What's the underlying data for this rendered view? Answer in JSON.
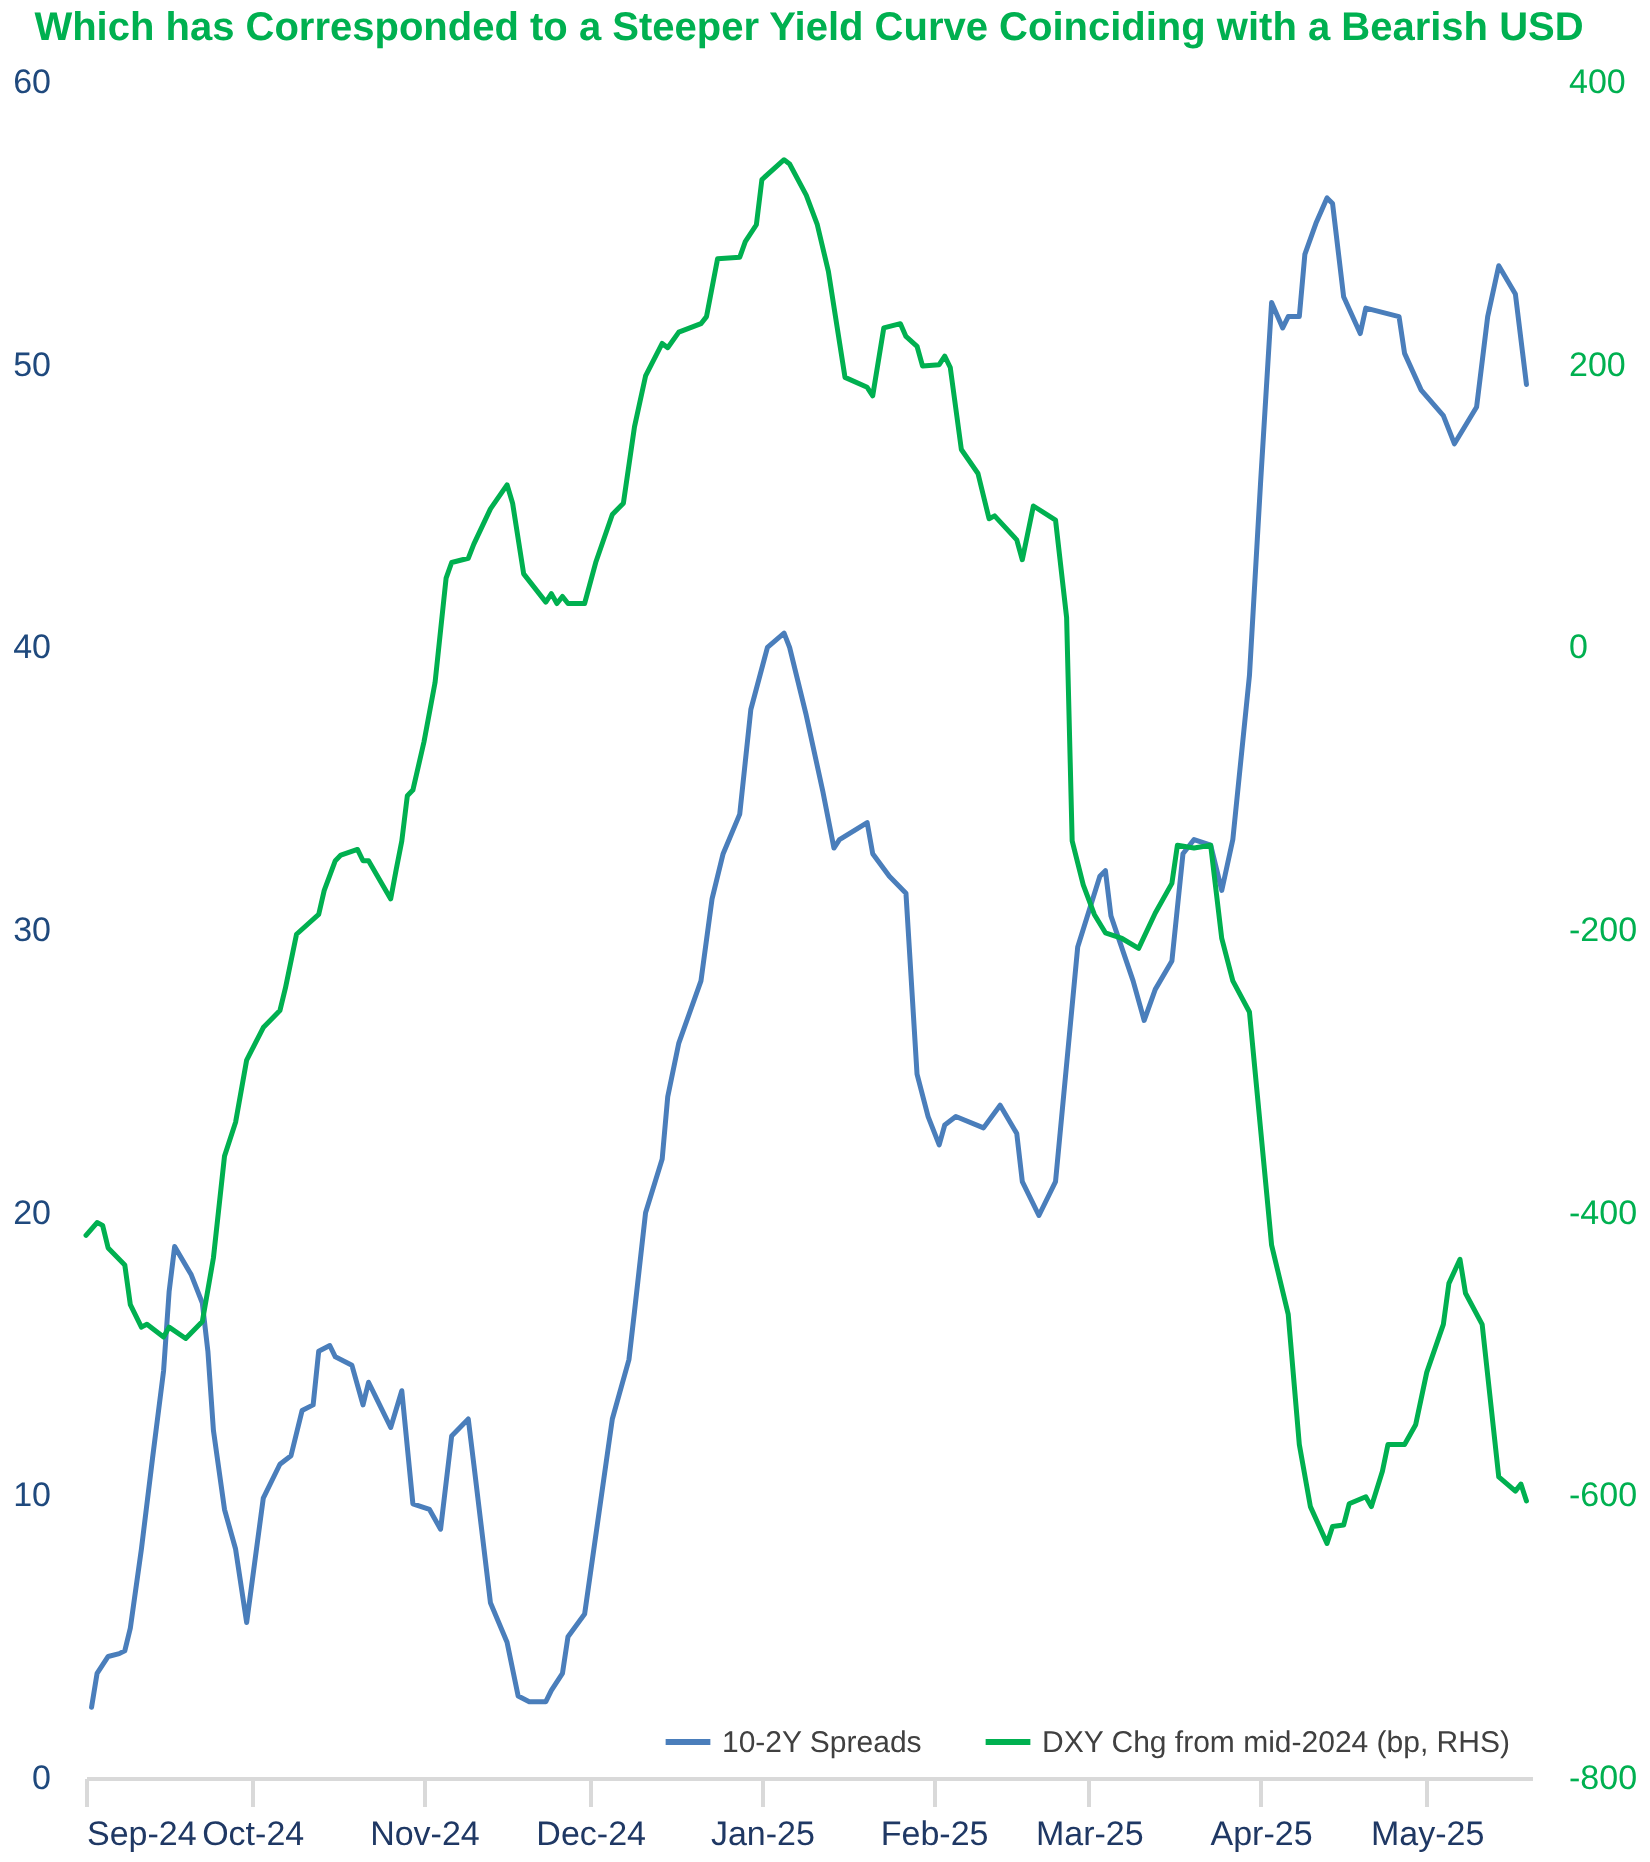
{
  "chart_data": {
    "type": "line",
    "title": "Which has Corresponded to a Steeper Yield Curve Coinciding with a Bearish USD",
    "xlim": [
      "2024-09-01",
      "2025-05-20"
    ],
    "xticks": [
      {
        "value": "2024-09-01",
        "label": "Sep-24"
      },
      {
        "value": "2024-10-01",
        "label": "Oct-24"
      },
      {
        "value": "2024-11-01",
        "label": "Nov-24"
      },
      {
        "value": "2024-12-01",
        "label": "Dec-24"
      },
      {
        "value": "2025-01-01",
        "label": "Jan-25"
      },
      {
        "value": "2025-02-01",
        "label": "Feb-25"
      },
      {
        "value": "2025-03-01",
        "label": "Mar-25"
      },
      {
        "value": "2025-04-01",
        "label": "Apr-25"
      },
      {
        "value": "2025-05-01",
        "label": "May-25"
      }
    ],
    "ylim": [
      0,
      60
    ],
    "yticks": [
      0,
      10,
      20,
      30,
      40,
      50,
      60
    ],
    "y2lim": [
      -800,
      400
    ],
    "y2ticks": [
      -800,
      -600,
      -400,
      -200,
      0,
      200,
      400
    ],
    "legend": "bottom right",
    "series": [
      {
        "name": "10-2Y Spreads",
        "color": "#4a7ebb",
        "x": [
          "2024-09-02",
          "2024-09-03",
          "2024-09-05",
          "2024-09-07",
          "2024-09-08",
          "2024-09-09",
          "2024-09-11",
          "2024-09-13",
          "2024-09-15",
          "2024-09-16",
          "2024-09-17",
          "2024-09-20",
          "2024-09-22",
          "2024-09-23",
          "2024-09-24",
          "2024-09-26",
          "2024-09-28",
          "2024-09-30",
          "2024-10-03",
          "2024-10-06",
          "2024-10-08",
          "2024-10-10",
          "2024-10-12",
          "2024-10-13",
          "2024-10-15",
          "2024-10-16",
          "2024-10-19",
          "2024-10-21",
          "2024-10-22",
          "2024-10-24",
          "2024-10-26",
          "2024-10-28",
          "2024-10-30",
          "2024-11-02",
          "2024-11-04",
          "2024-11-06",
          "2024-11-09",
          "2024-11-10",
          "2024-11-13",
          "2024-11-16",
          "2024-11-18",
          "2024-11-20",
          "2024-11-23",
          "2024-11-24",
          "2024-11-26",
          "2024-11-27",
          "2024-11-30",
          "2024-12-05",
          "2024-12-08",
          "2024-12-09",
          "2024-12-11",
          "2024-12-14",
          "2024-12-15",
          "2024-12-17",
          "2024-12-21",
          "2024-12-23",
          "2024-12-25",
          "2024-12-28",
          "2024-12-30",
          "2025-01-02",
          "2025-01-05",
          "2025-01-06",
          "2025-01-09",
          "2025-01-12",
          "2025-01-14",
          "2025-01-15",
          "2025-01-20",
          "2025-01-21",
          "2025-01-24",
          "2025-01-27",
          "2025-01-29",
          "2025-01-31",
          "2025-02-02",
          "2025-02-03",
          "2025-02-05",
          "2025-02-10",
          "2025-02-13",
          "2025-02-16",
          "2025-02-17",
          "2025-02-20",
          "2025-02-23",
          "2025-02-27",
          "2025-03-03",
          "2025-03-04",
          "2025-03-05",
          "2025-03-09",
          "2025-03-11",
          "2025-03-13",
          "2025-03-16",
          "2025-03-18",
          "2025-03-20",
          "2025-03-23",
          "2025-03-25",
          "2025-03-27",
          "2025-03-30",
          "2025-04-01",
          "2025-04-03",
          "2025-04-05",
          "2025-04-06",
          "2025-04-08",
          "2025-04-09",
          "2025-04-11",
          "2025-04-13",
          "2025-04-14",
          "2025-04-16",
          "2025-04-19",
          "2025-04-20",
          "2025-04-26",
          "2025-04-27",
          "2025-04-30",
          "2025-05-04",
          "2025-05-06",
          "2025-05-10",
          "2025-05-12",
          "2025-05-14",
          "2025-05-17",
          "2025-05-19"
        ],
        "values": [
          2.5,
          3.7,
          4.3,
          4.4,
          4.5,
          5.3,
          8.1,
          11.3,
          14.4,
          17.2,
          18.8,
          17.8,
          16.8,
          15.1,
          12.3,
          9.5,
          8.1,
          5.5,
          9.9,
          11.1,
          11.4,
          13.0,
          13.2,
          15.1,
          15.3,
          14.9,
          14.6,
          13.2,
          14.0,
          13.2,
          12.4,
          13.7,
          9.7,
          9.5,
          8.8,
          12.1,
          12.7,
          11.1,
          6.2,
          4.8,
          2.9,
          2.7,
          2.7,
          3.1,
          3.7,
          5.0,
          5.8,
          12.7,
          14.8,
          16.5,
          20.0,
          21.9,
          24.1,
          26.0,
          28.2,
          31.1,
          32.7,
          34.1,
          37.8,
          40.0,
          40.5,
          40.0,
          37.6,
          34.9,
          32.9,
          33.2,
          33.8,
          32.7,
          31.9,
          31.3,
          24.9,
          23.4,
          22.4,
          23.1,
          23.4,
          23.0,
          23.8,
          22.8,
          21.1,
          19.9,
          21.1,
          29.4,
          31.9,
          32.1,
          30.5,
          28.2,
          26.8,
          27.9,
          28.9,
          32.7,
          33.2,
          33.0,
          31.4,
          33.2,
          39.0,
          45.8,
          52.2,
          51.3,
          51.7,
          51.7,
          53.9,
          55.0,
          55.9,
          55.7,
          52.4,
          51.1,
          52.0,
          51.7,
          50.4,
          49.1,
          48.2,
          47.2,
          48.5,
          51.7,
          53.5,
          52.5,
          49.3
        ]
      },
      {
        "name": "DXY Chg from mid-2024 (bp, RHS)",
        "color": "#00b050",
        "axis": "y2",
        "x": [
          "2024-09-01",
          "2024-09-03",
          "2024-09-04",
          "2024-09-05",
          "2024-09-08",
          "2024-09-09",
          "2024-09-11",
          "2024-09-12",
          "2024-09-15",
          "2024-09-16",
          "2024-09-19",
          "2024-09-22",
          "2024-09-24",
          "2024-09-26",
          "2024-09-28",
          "2024-09-30",
          "2024-10-03",
          "2024-10-06",
          "2024-10-07",
          "2024-10-09",
          "2024-10-13",
          "2024-10-14",
          "2024-10-16",
          "2024-10-17",
          "2024-10-20",
          "2024-10-21",
          "2024-10-22",
          "2024-10-26",
          "2024-10-27",
          "2024-10-28",
          "2024-10-29",
          "2024-10-30",
          "2024-11-01",
          "2024-11-03",
          "2024-11-05",
          "2024-11-06",
          "2024-11-09",
          "2024-11-10",
          "2024-11-13",
          "2024-11-16",
          "2024-11-17",
          "2024-11-19",
          "2024-11-23",
          "2024-11-24",
          "2024-11-25",
          "2024-11-26",
          "2024-11-27",
          "2024-11-30",
          "2024-12-02",
          "2024-12-05",
          "2024-12-07",
          "2024-12-09",
          "2024-12-11",
          "2024-12-14",
          "2024-12-15",
          "2024-12-17",
          "2024-12-21",
          "2024-12-22",
          "2024-12-24",
          "2024-12-28",
          "2024-12-29",
          "2024-12-31",
          "2025-01-01",
          "2025-01-05",
          "2025-01-06",
          "2025-01-09",
          "2025-01-11",
          "2025-01-13",
          "2025-01-16",
          "2025-01-20",
          "2025-01-21",
          "2025-01-23",
          "2025-01-26",
          "2025-01-27",
          "2025-01-29",
          "2025-01-30",
          "2025-02-02",
          "2025-02-03",
          "2025-02-04",
          "2025-02-06",
          "2025-02-09",
          "2025-02-11",
          "2025-02-12",
          "2025-02-16",
          "2025-02-17",
          "2025-02-19",
          "2025-02-23",
          "2025-02-25",
          "2025-02-26",
          "2025-02-28",
          "2025-03-02",
          "2025-03-04",
          "2025-03-07",
          "2025-03-10",
          "2025-03-13",
          "2025-03-16",
          "2025-03-17",
          "2025-03-20",
          "2025-03-23",
          "2025-03-25",
          "2025-03-27",
          "2025-03-30",
          "2025-04-03",
          "2025-04-06",
          "2025-04-08",
          "2025-04-10",
          "2025-04-13",
          "2025-04-14",
          "2025-04-16",
          "2025-04-17",
          "2025-04-20",
          "2025-04-21",
          "2025-04-23",
          "2025-04-24",
          "2025-04-27",
          "2025-04-29",
          "2025-05-01",
          "2025-05-04",
          "2025-05-05",
          "2025-05-07",
          "2025-05-08",
          "2025-05-11",
          "2025-05-14",
          "2025-05-17",
          "2025-05-18",
          "2025-05-19"
        ],
        "values": [
          -416,
          -407,
          -409,
          -425,
          -437,
          -465,
          -481,
          -479,
          -488,
          -481,
          -489,
          -477,
          -432,
          -360,
          -336,
          -292,
          -269,
          -257,
          -241,
          -203,
          -189,
          -172,
          -151,
          -147,
          -143,
          -151,
          -151,
          -178,
          -157,
          -137,
          -105,
          -101,
          -67,
          -25,
          49,
          60,
          63,
          73,
          98,
          115,
          102,
          52,
          32,
          38,
          31,
          36,
          31,
          31,
          60,
          94,
          102,
          156,
          192,
          215,
          212,
          223,
          229,
          234,
          275,
          276,
          287,
          299,
          331,
          345,
          342,
          320,
          299,
          266,
          191,
          184,
          178,
          226,
          229,
          220,
          213,
          199,
          200,
          206,
          198,
          140,
          123,
          91,
          93,
          76,
          62,
          100,
          90,
          21,
          -137,
          -168,
          -189,
          -202,
          -206,
          -213,
          -188,
          -167,
          -140,
          -142,
          -140,
          -206,
          -236,
          -258,
          -423,
          -472,
          -564,
          -608,
          -634,
          -622,
          -621,
          -606,
          -601,
          -608,
          -583,
          -564,
          -564,
          -550,
          -513,
          -479,
          -450,
          -433,
          -457,
          -479,
          -587,
          -597,
          -592,
          -604
        ]
      }
    ]
  }
}
